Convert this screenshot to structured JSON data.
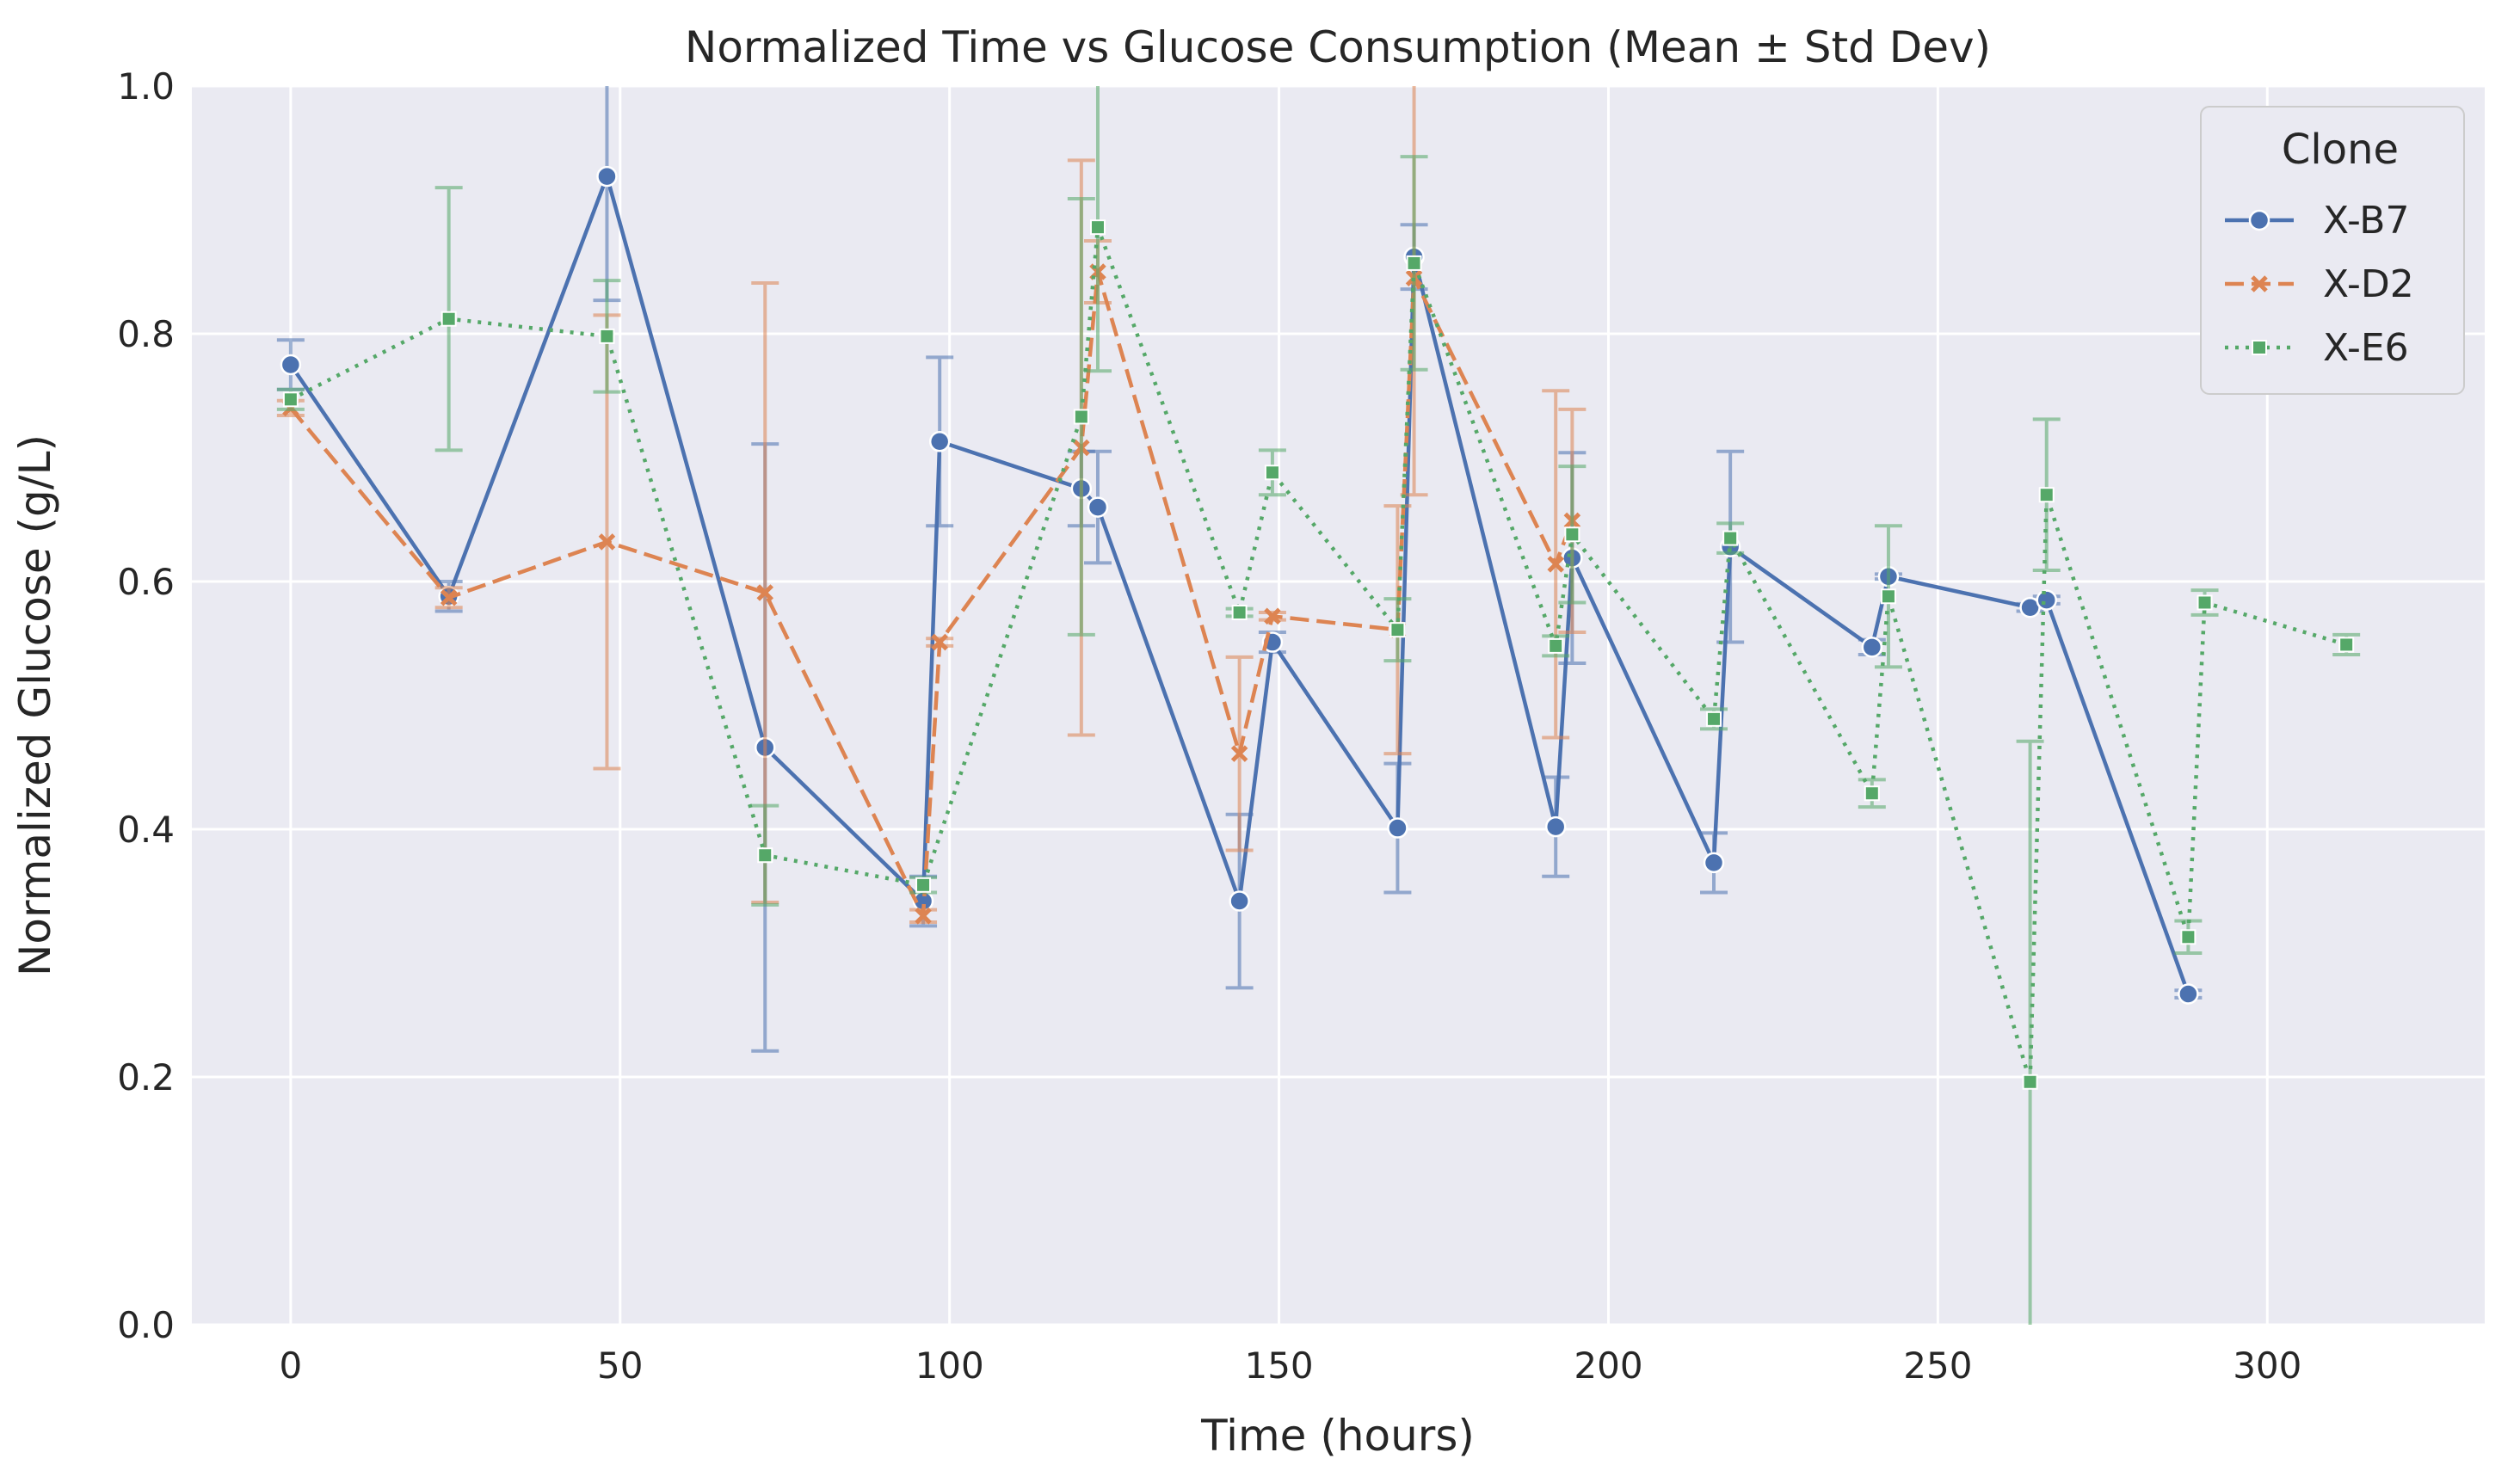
{
  "chart_data": {
    "type": "line",
    "title": "Normalized Time vs Glucose Consumption (Mean ± Std Dev)",
    "xlabel": "Time (hours)",
    "ylabel": "Normalized Glucose (g/L)",
    "xlim": [
      -15,
      333
    ],
    "ylim": [
      0,
      1.0
    ],
    "xticks": [
      0,
      50,
      100,
      150,
      200,
      250,
      300
    ],
    "yticks": [
      0.0,
      0.2,
      0.4,
      0.6,
      0.8,
      1.0
    ],
    "xtick_labels": [
      "0",
      "50",
      "100",
      "150",
      "200",
      "250",
      "300"
    ],
    "ytick_labels": [
      "0.0",
      "0.2",
      "0.4",
      "0.6",
      "0.8",
      "1.0"
    ],
    "grid": true,
    "legend": {
      "title": "Clone",
      "placement": "top-right"
    },
    "series": [
      {
        "name": "X-B7",
        "color": "#4c72b0",
        "marker": "circle",
        "dash": "solid",
        "points": [
          {
            "x": 0,
            "y": 0.775,
            "err": 0.02
          },
          {
            "x": 24,
            "y": 0.588,
            "err": 0.012
          },
          {
            "x": 48,
            "y": 0.927,
            "err": 0.1
          },
          {
            "x": 72,
            "y": 0.466,
            "err": 0.245
          },
          {
            "x": 96,
            "y": 0.342,
            "err": 0.02
          },
          {
            "x": 98.5,
            "y": 0.713,
            "err": 0.068
          },
          {
            "x": 120,
            "y": 0.675,
            "err": 0.03
          },
          {
            "x": 122.5,
            "y": 0.66,
            "err": 0.045
          },
          {
            "x": 144,
            "y": 0.342,
            "err": 0.07
          },
          {
            "x": 149,
            "y": 0.551,
            "err": 0.008
          },
          {
            "x": 168,
            "y": 0.401,
            "err": 0.052
          },
          {
            "x": 170.5,
            "y": 0.862,
            "err": 0.026
          },
          {
            "x": 192,
            "y": 0.402,
            "err": 0.04
          },
          {
            "x": 194.5,
            "y": 0.619,
            "err": 0.085
          },
          {
            "x": 216,
            "y": 0.373,
            "err": 0.024
          },
          {
            "x": 218.5,
            "y": 0.628,
            "err": 0.077
          },
          {
            "x": 240,
            "y": 0.547,
            "err": 0.006
          },
          {
            "x": 242.5,
            "y": 0.604,
            "err": 0.002
          },
          {
            "x": 264,
            "y": 0.579,
            "err": 0.003
          },
          {
            "x": 266.5,
            "y": 0.585,
            "err": 0.003
          },
          {
            "x": 288,
            "y": 0.267,
            "err": 0.003
          }
        ]
      },
      {
        "name": "X-D2",
        "color": "#dd8452",
        "marker": "x",
        "dash": "dashed",
        "points": [
          {
            "x": 0,
            "y": 0.74,
            "err": 0.006
          },
          {
            "x": 24,
            "y": 0.587,
            "err": 0.008
          },
          {
            "x": 48,
            "y": 0.632,
            "err": 0.183
          },
          {
            "x": 72,
            "y": 0.591,
            "err": 0.25
          },
          {
            "x": 96,
            "y": 0.33,
            "err": 0.005
          },
          {
            "x": 98.5,
            "y": 0.551,
            "err": 0.003
          },
          {
            "x": 120,
            "y": 0.708,
            "err": 0.232
          },
          {
            "x": 122.5,
            "y": 0.85,
            "err": 0.025
          },
          {
            "x": 144,
            "y": 0.461,
            "err": 0.078
          },
          {
            "x": 149,
            "y": 0.572,
            "err": 0.003
          },
          {
            "x": 168,
            "y": 0.561,
            "err": 0.1
          },
          {
            "x": 170.5,
            "y": 0.845,
            "err": 0.175
          },
          {
            "x": 192,
            "y": 0.614,
            "err": 0.14
          },
          {
            "x": 194.5,
            "y": 0.649,
            "err": 0.09
          }
        ]
      },
      {
        "name": "X-E6",
        "color": "#55a868",
        "marker": "square",
        "dash": "dotted",
        "points": [
          {
            "x": 0,
            "y": 0.747,
            "err": 0.008
          },
          {
            "x": 24,
            "y": 0.812,
            "err": 0.106
          },
          {
            "x": 48,
            "y": 0.798,
            "err": 0.045
          },
          {
            "x": 72,
            "y": 0.379,
            "err": 0.04
          },
          {
            "x": 96,
            "y": 0.355,
            "err": 0.006
          },
          {
            "x": 120,
            "y": 0.733,
            "err": 0.176
          },
          {
            "x": 122.5,
            "y": 0.886,
            "err": 0.116
          },
          {
            "x": 144,
            "y": 0.575,
            "err": 0.003
          },
          {
            "x": 149,
            "y": 0.688,
            "err": 0.018
          },
          {
            "x": 168,
            "y": 0.561,
            "err": 0.025
          },
          {
            "x": 170.5,
            "y": 0.857,
            "err": 0.086
          },
          {
            "x": 192,
            "y": 0.548,
            "err": 0.008
          },
          {
            "x": 194.5,
            "y": 0.638,
            "err": 0.055
          },
          {
            "x": 216,
            "y": 0.489,
            "err": 0.008
          },
          {
            "x": 218.5,
            "y": 0.635,
            "err": 0.012
          },
          {
            "x": 240,
            "y": 0.429,
            "err": 0.011
          },
          {
            "x": 242.5,
            "y": 0.588,
            "err": 0.057
          },
          {
            "x": 264,
            "y": 0.196,
            "err": 0.275
          },
          {
            "x": 266.5,
            "y": 0.67,
            "err": 0.061
          },
          {
            "x": 288,
            "y": 0.313,
            "err": 0.013
          },
          {
            "x": 290.5,
            "y": 0.583,
            "err": 0.01
          },
          {
            "x": 312,
            "y": 0.549,
            "err": 0.008
          }
        ]
      }
    ]
  }
}
